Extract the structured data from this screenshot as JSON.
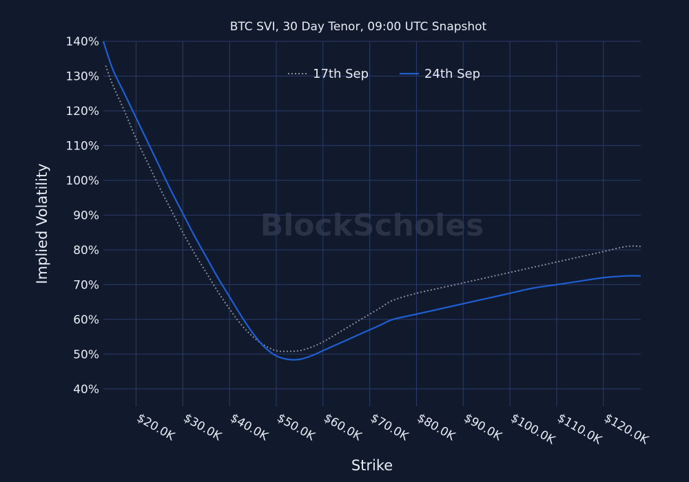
{
  "chart_data": {
    "type": "line",
    "title": "BTC SVI, 30 Day Tenor, 09:00 UTC Snapshot",
    "xlabel": "Strike",
    "ylabel": "Implied Volatility",
    "watermark": "BlockScholes",
    "xlim": [
      13000,
      128000
    ],
    "ylim": [
      35,
      140
    ],
    "x_ticks": [
      20000,
      30000,
      40000,
      50000,
      60000,
      70000,
      80000,
      90000,
      100000,
      110000,
      120000
    ],
    "x_tick_labels": [
      "$20.0K",
      "$30.0K",
      "$40.0K",
      "$50.0K",
      "$60.0K",
      "$70.0K",
      "$80.0K",
      "$90.0K",
      "$100.0K",
      "$110.0K",
      "$120.0K"
    ],
    "y_ticks": [
      40,
      50,
      60,
      70,
      80,
      90,
      100,
      110,
      120,
      130,
      140
    ],
    "y_tick_labels": [
      "40%",
      "50%",
      "60%",
      "70%",
      "80%",
      "90%",
      "100%",
      "110%",
      "120%",
      "130%",
      "140%"
    ],
    "grid": true,
    "legend_position": "top-center",
    "series": [
      {
        "name": "17th Sep",
        "color": "#8a8f99",
        "dash": "dotted",
        "x": [
          13500,
          15000,
          17500,
          20000,
          22500,
          25000,
          27500,
          30000,
          32500,
          35000,
          37500,
          40000,
          42500,
          45000,
          47500,
          50000,
          52500,
          55000,
          57500,
          60000,
          62500,
          65000,
          67500,
          70000,
          72500,
          75000,
          80000,
          85000,
          90000,
          95000,
          100000,
          105000,
          110000,
          115000,
          120000,
          125000,
          128000
        ],
        "y": [
          133,
          127.5,
          120,
          112,
          105,
          98,
          91.5,
          85,
          79,
          73.5,
          68,
          63,
          58.5,
          55,
          52.5,
          51,
          50.8,
          51,
          52,
          53.5,
          55.5,
          57.5,
          59.5,
          61.5,
          63.5,
          65.5,
          67.5,
          69,
          70.5,
          72,
          73.5,
          75,
          76.5,
          78,
          79.5,
          81,
          81
        ]
      },
      {
        "name": "24th Sep",
        "color": "#1f5fd4",
        "dash": "solid",
        "x": [
          13000,
          15000,
          17500,
          20000,
          22500,
          25000,
          27500,
          30000,
          32500,
          35000,
          37500,
          40000,
          42500,
          45000,
          47500,
          50000,
          52500,
          55000,
          57500,
          60000,
          62500,
          65000,
          67500,
          70000,
          72500,
          75000,
          80000,
          85000,
          90000,
          95000,
          100000,
          105000,
          110000,
          115000,
          120000,
          125000,
          128000
        ],
        "y": [
          140,
          132,
          125,
          118,
          111,
          104,
          97,
          90.5,
          84,
          78,
          72,
          66.5,
          61,
          56,
          52,
          49.5,
          48.5,
          48.5,
          49.5,
          51,
          52.5,
          54,
          55.5,
          57,
          58.5,
          60,
          61.5,
          63,
          64.5,
          66,
          67.5,
          69,
          70,
          71,
          72,
          72.5,
          72.5
        ]
      }
    ]
  }
}
